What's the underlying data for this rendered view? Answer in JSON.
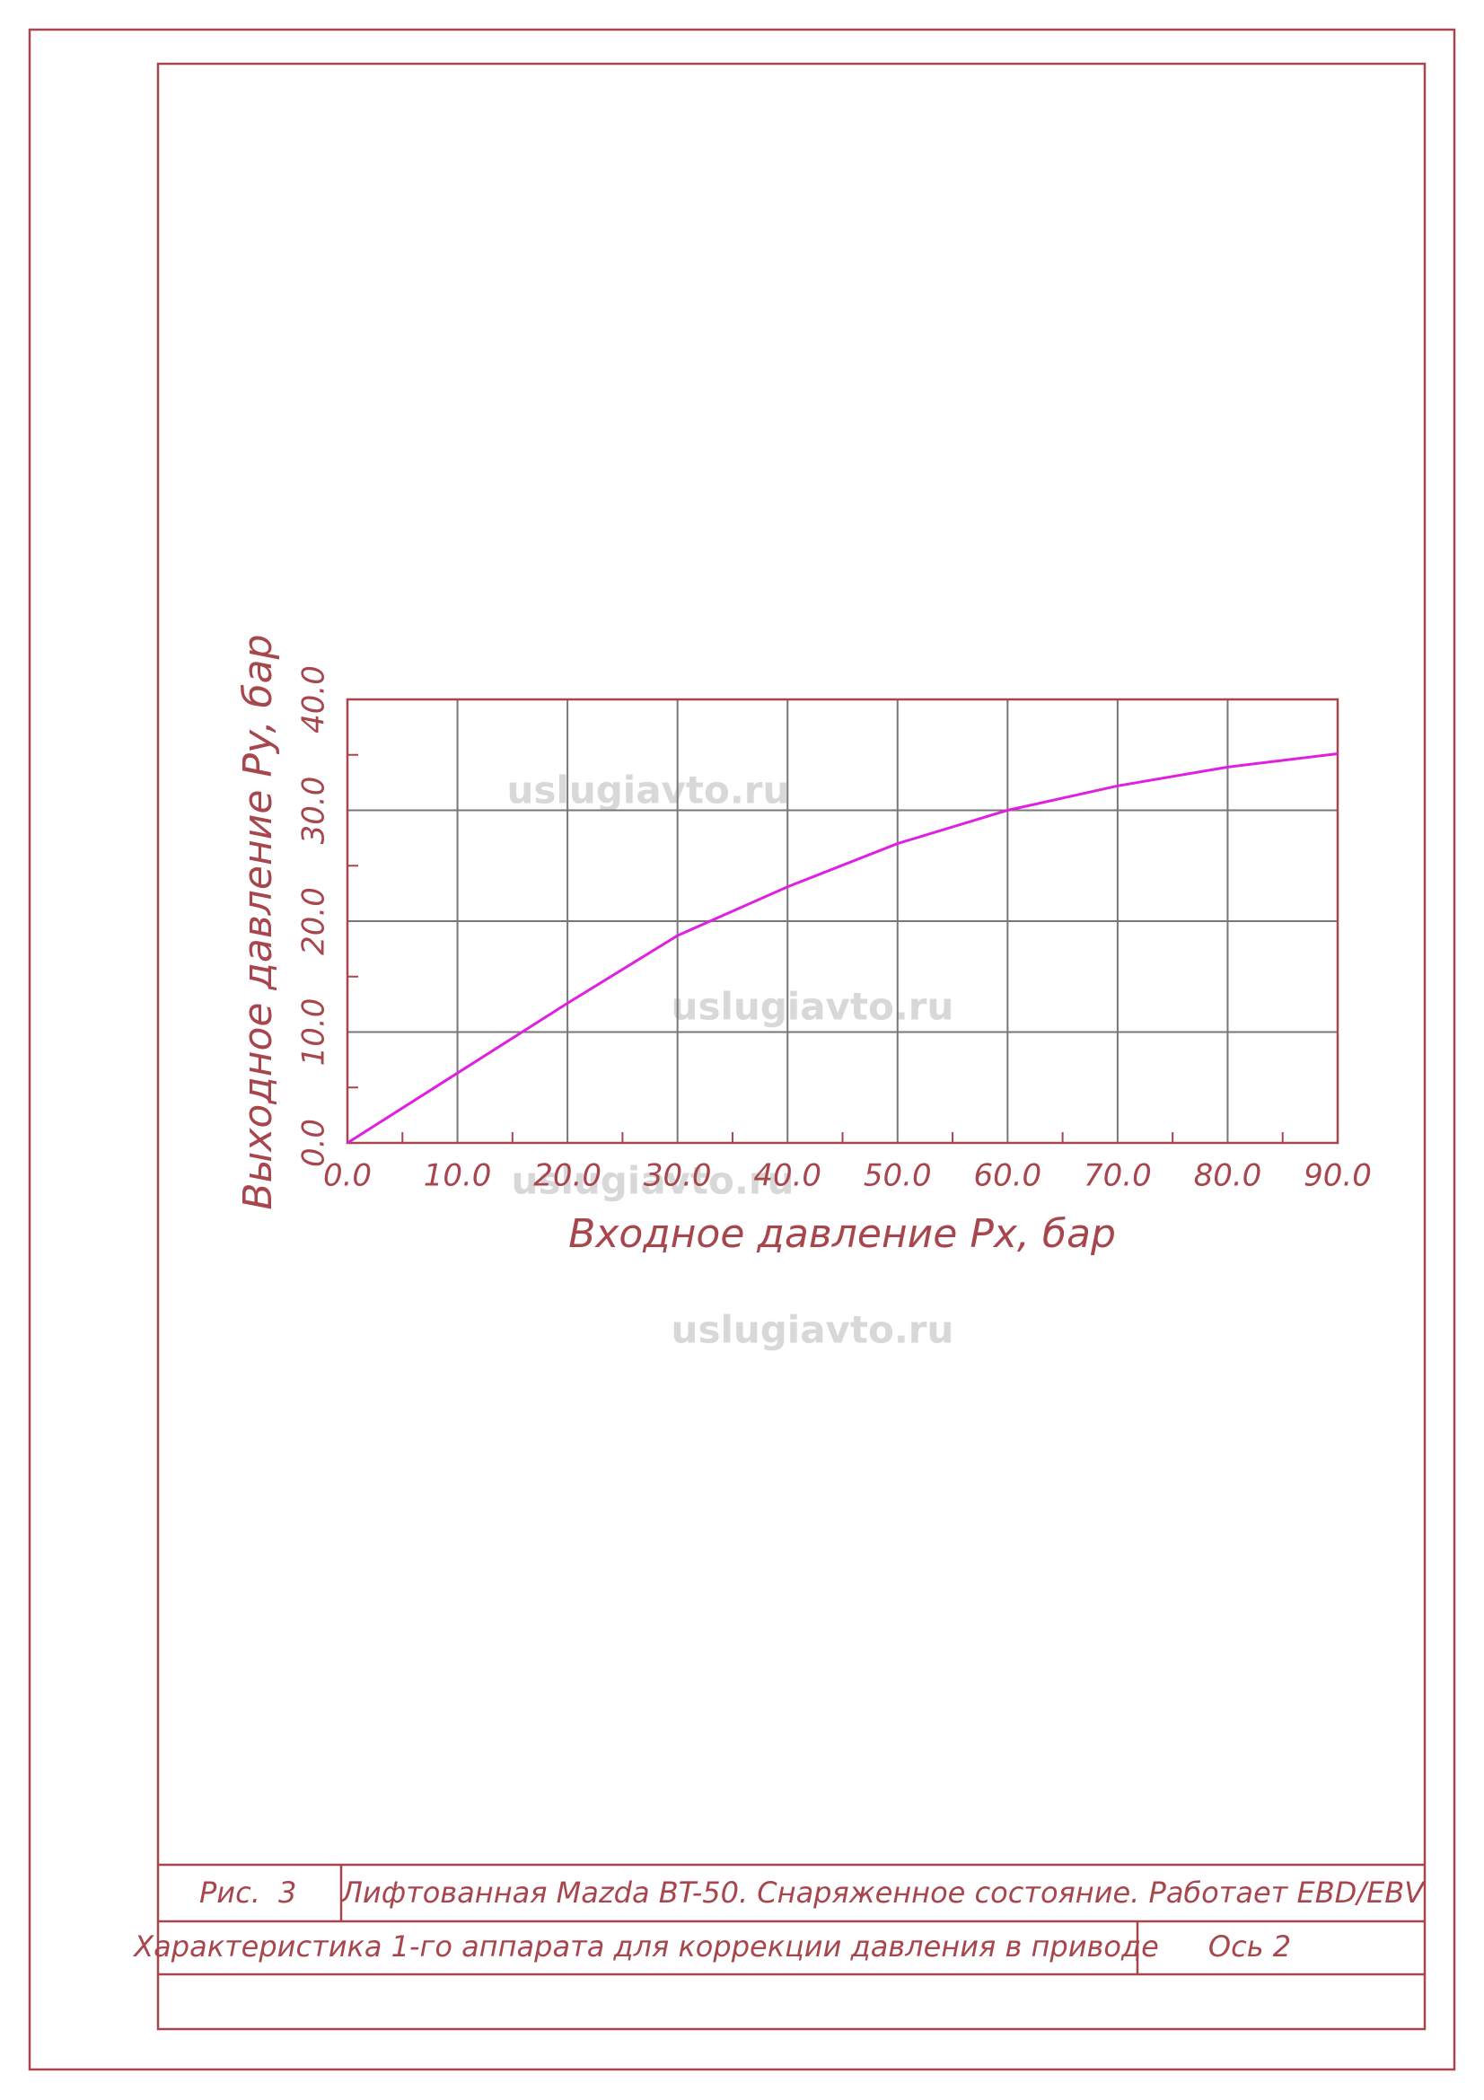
{
  "chart_data": {
    "type": "line",
    "x_label": "Входное давление Px, бар",
    "y_label": "Выходное давление Py, бар",
    "x": [
      0,
      10,
      20,
      30,
      40,
      50,
      60,
      70,
      80,
      90
    ],
    "series": [
      {
        "color": "#e020e0",
        "values": [
          0,
          6.3,
          12.6,
          18.7,
          23.1,
          27,
          30,
          32.2,
          33.9,
          35.1
        ]
      }
    ],
    "xlim": [
      0,
      90
    ],
    "ylim": [
      0,
      40
    ],
    "xticks": [
      {
        "value": 0,
        "label": "0.0"
      },
      {
        "value": 10,
        "label": "10.0"
      },
      {
        "value": 20,
        "label": "20.0"
      },
      {
        "value": 30,
        "label": "30.0"
      },
      {
        "value": 40,
        "label": "40.0"
      },
      {
        "value": 50,
        "label": "50.0"
      },
      {
        "value": 60,
        "label": "60.0"
      },
      {
        "value": 70,
        "label": "70.0"
      },
      {
        "value": 80,
        "label": "80.0"
      },
      {
        "value": 90,
        "label": "90.0"
      }
    ],
    "yticks": [
      {
        "value": 0,
        "label": "0.0"
      },
      {
        "value": 10,
        "label": "10.0"
      },
      {
        "value": 20,
        "label": "20.0"
      },
      {
        "value": 30,
        "label": "30.0"
      },
      {
        "value": 40,
        "label": "40.0"
      }
    ],
    "grid": true
  },
  "title_block": {
    "fig_label": "Рис.",
    "fig_number": "3",
    "title": "Лифтованная Mazda BT-50. Снаряженное состояние. Работает EBD/EBV",
    "subtitle": "Характеристика  1-го аппарата для коррекции давления в приводе",
    "axle": "Ось 2"
  },
  "watermarks": [
    "uslugiavto.ru",
    "uslugiavto.ru",
    "uslugiavto.ru",
    "uslugiavto.ru"
  ]
}
